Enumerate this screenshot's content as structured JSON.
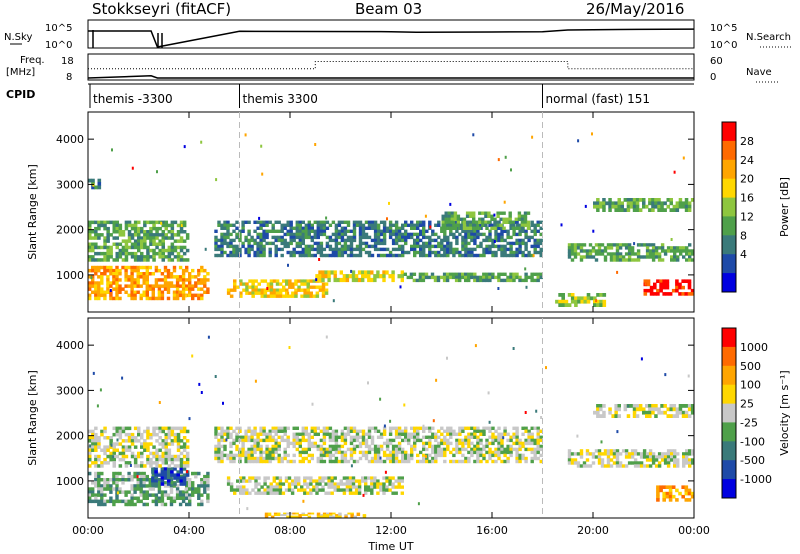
{
  "header": {
    "title": "Stokkseyri (fitACF)",
    "beam": "Beam 03",
    "date": "26/May/2016"
  },
  "top_panels": {
    "nsky_label": "N.Sky",
    "nsearch_label": "N.Search",
    "nsky_ticks": [
      "10^5",
      "10^0"
    ],
    "nsearch_ticks": [
      "10^5",
      "10^0"
    ],
    "freq_label": "Freq.",
    "freq_unit": "[MHz]",
    "freq_ticks": [
      "18",
      "8"
    ],
    "nave_label": "Nave",
    "nave_ticks": [
      "60",
      "0"
    ],
    "cpid_label": "CPID"
  },
  "chart_data": [
    {
      "type": "line",
      "name": "noise-panel",
      "series": [
        {
          "name": "N.Sky",
          "x": [
            "00:00",
            "02:30",
            "02:45",
            "06:00",
            "09:00",
            "12:00",
            "13:00",
            "16:00",
            "18:00",
            "19:00",
            "21:00",
            "24:00"
          ],
          "y": [
            100000,
            100000,
            1,
            80000,
            70000,
            60000,
            40000,
            50000,
            60000,
            200000,
            300000,
            400000
          ]
        }
      ],
      "xlim": [
        "00:00",
        "24:00"
      ]
    },
    {
      "type": "line",
      "name": "frequency-nave-panel",
      "series": [
        {
          "name": "Freq.",
          "x": [
            "00:00",
            "02:30",
            "02:45",
            "03:00",
            "24:00"
          ],
          "y": [
            8,
            9,
            8,
            8,
            8
          ]
        },
        {
          "name": "Nave",
          "x": [
            "00:00",
            "09:00",
            "09:00",
            "19:00",
            "19:00",
            "24:00"
          ],
          "y": [
            25,
            25,
            45,
            45,
            25,
            25
          ]
        }
      ],
      "ylim": [
        8,
        18
      ],
      "xlim": [
        "00:00",
        "24:00"
      ]
    },
    {
      "type": "table",
      "name": "cpid-segments",
      "segments": [
        {
          "start": "00:00",
          "label": "themis -3300"
        },
        {
          "start": "06:00",
          "label": "themis 3300"
        },
        {
          "start": "18:00",
          "label": "normal (fast) 151"
        }
      ]
    },
    {
      "type": "heatmap",
      "name": "power",
      "xlabel": "",
      "ylabel": "Slant Range [km]",
      "x_ticks": [
        "00:00",
        "04:00",
        "08:00",
        "12:00",
        "16:00",
        "20:00",
        "00:00"
      ],
      "y_ticks": [
        "1000",
        "2000",
        "3000",
        "4000"
      ],
      "xlim": [
        0,
        24
      ],
      "ylim": [
        180,
        4600
      ],
      "colorbar": {
        "label": "Power [dB]",
        "ticks": [
          "4",
          "8",
          "12",
          "16",
          "20",
          "24",
          "28"
        ],
        "colors": [
          "#0000e0",
          "#1e4aa8",
          "#3a7a7a",
          "#4fa04a",
          "#8ec63f",
          "#ffd700",
          "#ffa500",
          "#ff6a00",
          "#ff0000"
        ]
      },
      "regions": [
        {
          "t0": 0.0,
          "t1": 4.8,
          "r0": 450,
          "r1": 1200,
          "level": 6
        },
        {
          "t0": 0.0,
          "t1": 4.0,
          "r0": 1300,
          "r1": 2200,
          "level": 3
        },
        {
          "t0": 0.0,
          "t1": 0.5,
          "r0": 2900,
          "r1": 3200,
          "level": 2
        },
        {
          "t0": 5.5,
          "t1": 9.5,
          "r0": 500,
          "r1": 900,
          "level": 5
        },
        {
          "t0": 5.0,
          "t1": 18.0,
          "r0": 1400,
          "r1": 2200,
          "level": 2
        },
        {
          "t0": 9.0,
          "t1": 12.5,
          "r0": 850,
          "r1": 1100,
          "level": 5
        },
        {
          "t0": 12.5,
          "t1": 18.0,
          "r0": 850,
          "r1": 1050,
          "level": 3
        },
        {
          "t0": 14.0,
          "t1": 17.5,
          "r0": 2000,
          "r1": 2400,
          "level": 3
        },
        {
          "t0": 18.5,
          "t1": 20.5,
          "r0": 300,
          "r1": 600,
          "level": 4
        },
        {
          "t0": 19.0,
          "t1": 24.0,
          "r0": 1300,
          "r1": 1700,
          "level": 3
        },
        {
          "t0": 20.0,
          "t1": 24.0,
          "r0": 2400,
          "r1": 2700,
          "level": 3
        },
        {
          "t0": 22.0,
          "t1": 24.0,
          "r0": 550,
          "r1": 900,
          "level": 8
        }
      ]
    },
    {
      "type": "heatmap",
      "name": "velocity",
      "xlabel": "Time UT",
      "ylabel": "Slant Range [km]",
      "x_ticks": [
        "00:00",
        "04:00",
        "08:00",
        "12:00",
        "16:00",
        "20:00",
        "00:00"
      ],
      "y_ticks": [
        "1000",
        "2000",
        "3000",
        "4000"
      ],
      "xlim": [
        0,
        24
      ],
      "ylim": [
        180,
        4600
      ],
      "colorbar": {
        "label": "Velocity [m s⁻¹]",
        "ticks": [
          "1000",
          "500",
          "100",
          "25",
          "-25",
          "-100",
          "-500",
          "-1000"
        ],
        "colors": [
          "#0000e0",
          "#1e4aa8",
          "#3a7a7a",
          "#4fa04a",
          "#c8c8c8",
          "#ffd700",
          "#ffa500",
          "#ff6a00",
          "#ff0000"
        ]
      },
      "regions": [
        {
          "t0": 0.0,
          "t1": 4.8,
          "r0": 450,
          "r1": 1200,
          "level": 3
        },
        {
          "t0": 2.5,
          "t1": 4.0,
          "r0": 900,
          "r1": 1300,
          "level": 1
        },
        {
          "t0": 0.0,
          "t1": 4.0,
          "r0": 1300,
          "r1": 2200,
          "level": 4
        },
        {
          "t0": 5.0,
          "t1": 18.0,
          "r0": 1400,
          "r1": 2200,
          "level": 4
        },
        {
          "t0": 5.5,
          "t1": 12.5,
          "r0": 700,
          "r1": 1100,
          "level": 4
        },
        {
          "t0": 7.0,
          "t1": 11.0,
          "r0": 200,
          "r1": 300,
          "level": 5
        },
        {
          "t0": 19.0,
          "t1": 24.0,
          "r0": 1300,
          "r1": 1700,
          "level": 4
        },
        {
          "t0": 20.0,
          "t1": 24.0,
          "r0": 2400,
          "r1": 2700,
          "level": 4
        },
        {
          "t0": 22.5,
          "t1": 24.0,
          "r0": 550,
          "r1": 900,
          "level": 6
        }
      ]
    }
  ]
}
